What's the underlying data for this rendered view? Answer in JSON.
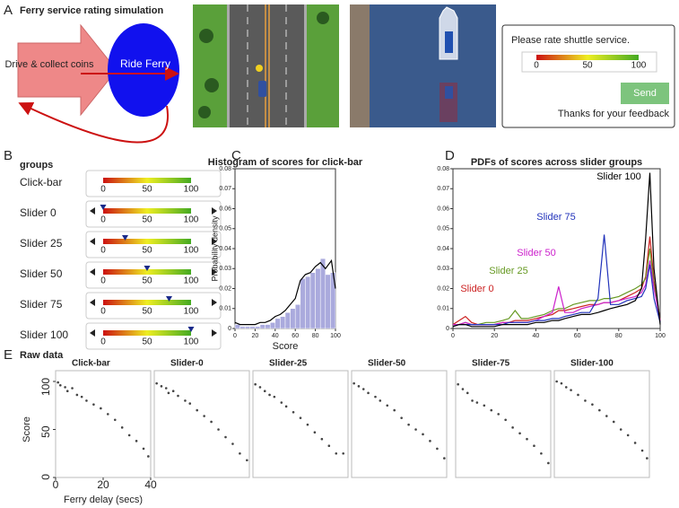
{
  "panel_labels": [
    "A",
    "B",
    "C",
    "D",
    "E"
  ],
  "panel_a": {
    "title": "Ferry service rating simulation",
    "drive_label": "Drive & collect coins",
    "ride_label": "Ride Ferry",
    "rating_prompt": "Please rate shuttle service.",
    "scale_ticks": [
      0,
      50,
      100
    ],
    "send_button": "Send",
    "thanks": "Thanks for your feedback"
  },
  "panel_b": {
    "title": "groups",
    "scale_ticks": [
      0,
      50,
      100
    ],
    "groups": [
      {
        "name": "Click-bar"
      },
      {
        "name": "Slider 0",
        "marker": 0
      },
      {
        "name": "Slider 25",
        "marker": 25
      },
      {
        "name": "Slider 50",
        "marker": 50
      },
      {
        "name": "Slider 75",
        "marker": 75
      },
      {
        "name": "Slider 100",
        "marker": 100
      }
    ]
  },
  "panel_e_title": "Raw data",
  "chart_data": [
    {
      "type": "histogram",
      "title": "Histogram of scores for click-bar",
      "x_label": "Score",
      "y_label": "Probability density",
      "bins": [
        0,
        5,
        10,
        15,
        20,
        25,
        30,
        35,
        40,
        45,
        50,
        55,
        60,
        65,
        70,
        75,
        80,
        85,
        90,
        95,
        100
      ],
      "values": [
        0.002,
        0.001,
        0.001,
        0.001,
        0.001,
        0.002,
        0.002,
        0.003,
        0.005,
        0.006,
        0.008,
        0.01,
        0.012,
        0.025,
        0.026,
        0.028,
        0.03,
        0.035,
        0.027,
        0.028
      ],
      "color": "#aaaadd",
      "kde": {
        "x": [
          0,
          5,
          10,
          15,
          20,
          25,
          30,
          35,
          40,
          45,
          50,
          55,
          60,
          65,
          70,
          75,
          80,
          85,
          90,
          96,
          100
        ],
        "values": [
          0.003,
          0.002,
          0.002,
          0.002,
          0.002,
          0.003,
          0.003,
          0.004,
          0.006,
          0.007,
          0.009,
          0.012,
          0.015,
          0.024,
          0.027,
          0.028,
          0.031,
          0.033,
          0.03,
          0.034,
          0.02
        ],
        "color": "#000000"
      },
      "xlim": [
        0,
        100
      ],
      "xticks": [
        0,
        20,
        40,
        60,
        80,
        100
      ],
      "ylim": [
        0,
        0.08
      ],
      "yticks": [
        0,
        0.01,
        0.02,
        0.03,
        0.04,
        0.05,
        0.06,
        0.07,
        0.08
      ]
    },
    {
      "type": "line",
      "title": "PDFs of scores across slider groups",
      "x": [
        0,
        3,
        6,
        9,
        12,
        16,
        20,
        24,
        27,
        30,
        33,
        36,
        40,
        44,
        48,
        51,
        54,
        58,
        62,
        66,
        70,
        73,
        76,
        80,
        84,
        88,
        91,
        93,
        95,
        97,
        100
      ],
      "series": [
        {
          "name": "Slider 0",
          "color": "#cc2222",
          "values": [
            0.002,
            0.004,
            0.006,
            0.003,
            0.002,
            0.002,
            0.002,
            0.003,
            0.003,
            0.004,
            0.004,
            0.004,
            0.005,
            0.006,
            0.007,
            0.009,
            0.009,
            0.01,
            0.011,
            0.012,
            0.012,
            0.013,
            0.013,
            0.014,
            0.016,
            0.018,
            0.02,
            0.026,
            0.046,
            0.024,
            0.004
          ]
        },
        {
          "name": "Slider 25",
          "color": "#669922",
          "values": [
            0.002,
            0.002,
            0.003,
            0.002,
            0.002,
            0.003,
            0.003,
            0.004,
            0.005,
            0.009,
            0.005,
            0.005,
            0.006,
            0.007,
            0.009,
            0.01,
            0.01,
            0.012,
            0.013,
            0.014,
            0.014,
            0.015,
            0.015,
            0.016,
            0.018,
            0.02,
            0.022,
            0.025,
            0.04,
            0.022,
            0.004
          ]
        },
        {
          "name": "Slider 50",
          "color": "#cc22cc",
          "values": [
            0.002,
            0.002,
            0.003,
            0.002,
            0.002,
            0.002,
            0.002,
            0.003,
            0.003,
            0.003,
            0.003,
            0.003,
            0.004,
            0.006,
            0.008,
            0.021,
            0.008,
            0.008,
            0.01,
            0.011,
            0.012,
            0.013,
            0.013,
            0.014,
            0.015,
            0.016,
            0.018,
            0.022,
            0.034,
            0.02,
            0.004
          ]
        },
        {
          "name": "Slider 75",
          "color": "#2233bb",
          "values": [
            0.001,
            0.002,
            0.002,
            0.002,
            0.002,
            0.002,
            0.002,
            0.002,
            0.003,
            0.003,
            0.003,
            0.003,
            0.004,
            0.004,
            0.005,
            0.005,
            0.006,
            0.007,
            0.008,
            0.008,
            0.015,
            0.047,
            0.012,
            0.012,
            0.014,
            0.015,
            0.016,
            0.02,
            0.032,
            0.015,
            0.003
          ]
        },
        {
          "name": "Slider 100",
          "color": "#000000",
          "values": [
            0.001,
            0.002,
            0.002,
            0.001,
            0.001,
            0.001,
            0.001,
            0.002,
            0.002,
            0.002,
            0.002,
            0.002,
            0.003,
            0.003,
            0.004,
            0.004,
            0.005,
            0.006,
            0.007,
            0.007,
            0.008,
            0.009,
            0.01,
            0.011,
            0.012,
            0.014,
            0.02,
            0.045,
            0.078,
            0.03,
            0.002
          ]
        }
      ],
      "xlim": [
        0,
        100
      ],
      "xticks": [
        0,
        20,
        40,
        60,
        80,
        100
      ],
      "ylim": [
        0,
        0.08
      ],
      "yticks": [
        0,
        0.01,
        0.02,
        0.03,
        0.04,
        0.05,
        0.06,
        0.07,
        0.08
      ]
    },
    {
      "type": "scatter",
      "title": "Click-bar",
      "x_label": "Ferry delay (secs)",
      "y_label": "Score",
      "x": [
        1,
        2,
        4,
        5,
        7,
        9,
        11,
        13,
        16,
        19,
        22,
        25,
        28,
        31,
        34,
        37,
        39
      ],
      "values": [
        99,
        96,
        94,
        90,
        93,
        86,
        84,
        80,
        76,
        72,
        66,
        60,
        52,
        44,
        38,
        30,
        22
      ],
      "xlim": [
        0,
        40
      ],
      "xticks": [
        0,
        20,
        40
      ],
      "ylim": [
        0,
        100
      ],
      "yticks": [
        0,
        50,
        100
      ]
    },
    {
      "type": "scatter",
      "title": "Slider-0",
      "x": [
        1,
        3,
        5,
        6,
        8,
        10,
        13,
        15,
        18,
        21,
        24,
        27,
        30,
        33,
        36,
        39
      ],
      "values": [
        98,
        95,
        93,
        88,
        90,
        85,
        80,
        77,
        70,
        64,
        58,
        50,
        42,
        35,
        25,
        18
      ],
      "xlim": [
        0,
        40
      ],
      "ylim": [
        0,
        100
      ]
    },
    {
      "type": "scatter",
      "title": "Slider-25",
      "x": [
        1,
        3,
        5,
        7,
        9,
        12,
        14,
        17,
        20,
        23,
        26,
        29,
        32,
        35,
        38
      ],
      "values": [
        97,
        94,
        90,
        86,
        84,
        78,
        74,
        68,
        62,
        55,
        47,
        40,
        33,
        25,
        25
      ],
      "xlim": [
        0,
        40
      ],
      "ylim": [
        0,
        100
      ]
    },
    {
      "type": "scatter",
      "title": "Slider-50",
      "x": [
        1,
        3,
        5,
        7,
        10,
        12,
        15,
        18,
        21,
        24,
        27,
        30,
        33,
        36,
        39
      ],
      "values": [
        98,
        95,
        92,
        88,
        84,
        80,
        75,
        70,
        62,
        55,
        50,
        45,
        38,
        30,
        20
      ],
      "xlim": [
        0,
        40
      ],
      "ylim": [
        0,
        100
      ]
    },
    {
      "type": "scatter",
      "title": "Slider-75",
      "x": [
        1,
        3,
        5,
        7,
        9,
        12,
        15,
        18,
        21,
        24,
        27,
        30,
        33,
        36,
        39
      ],
      "values": [
        97,
        92,
        88,
        80,
        78,
        75,
        70,
        66,
        60,
        52,
        46,
        40,
        33,
        25,
        15
      ],
      "xlim": [
        0,
        40
      ],
      "ylim": [
        0,
        100
      ]
    },
    {
      "type": "scatter",
      "title": "Slider-100",
      "x": [
        1,
        3,
        5,
        7,
        10,
        13,
        16,
        19,
        22,
        25,
        28,
        31,
        34,
        37,
        39
      ],
      "values": [
        100,
        98,
        94,
        91,
        86,
        80,
        76,
        70,
        64,
        58,
        50,
        44,
        36,
        28,
        20
      ],
      "xlim": [
        0,
        40
      ],
      "ylim": [
        0,
        100
      ]
    }
  ]
}
